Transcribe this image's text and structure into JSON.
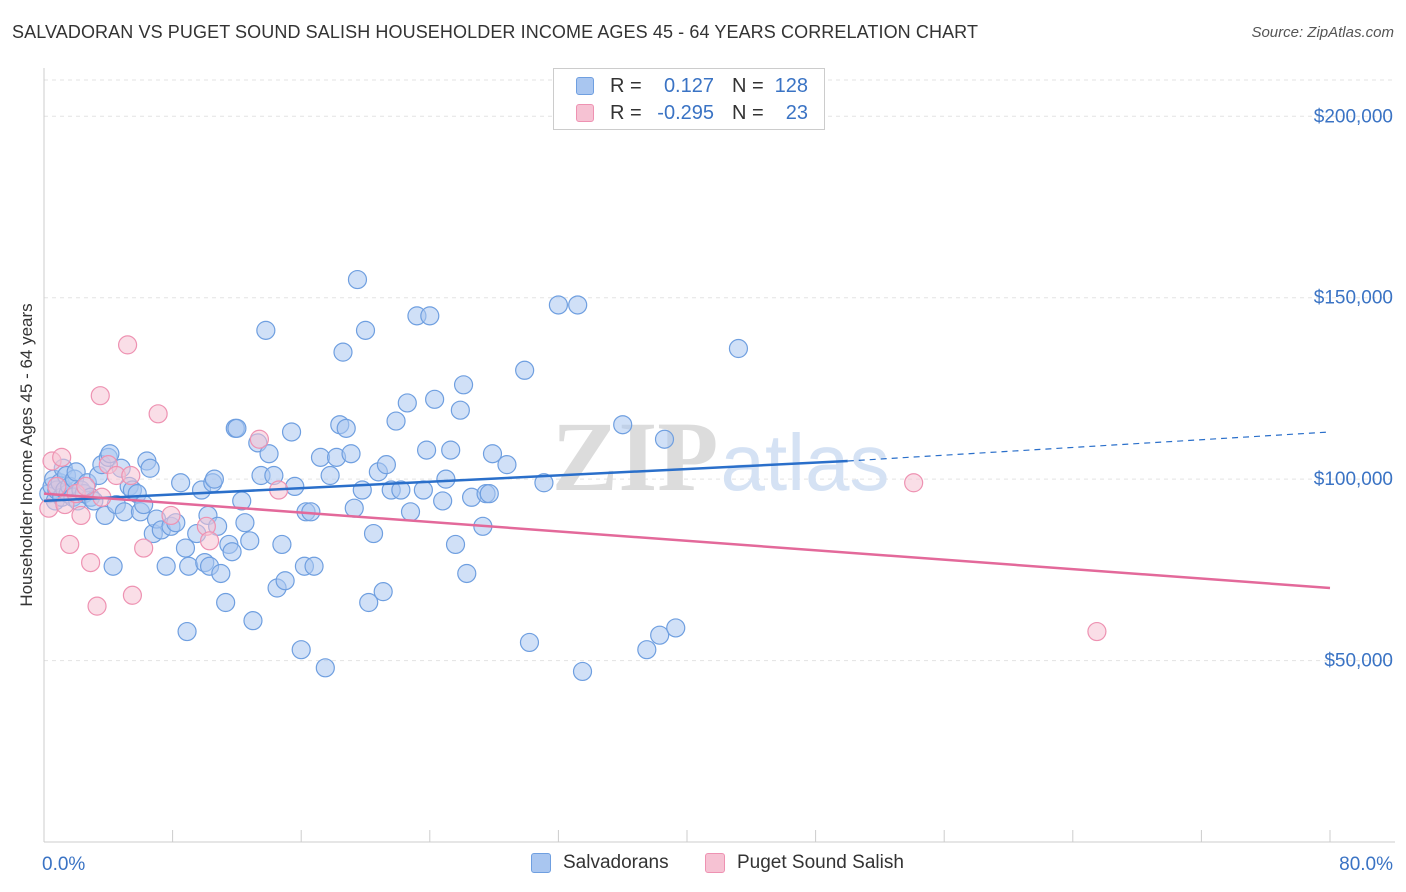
{
  "header": {
    "title": "SALVADORAN VS PUGET SOUND SALISH HOUSEHOLDER INCOME AGES 45 - 64 YEARS CORRELATION CHART",
    "source": "Source: ZipAtlas.com"
  },
  "watermark": {
    "zip": "ZIP",
    "atlas": "atlas"
  },
  "legend": {
    "rows": [
      {
        "r_label": "R =",
        "r_value": "0.127",
        "n_label": "N =",
        "n_value": "128",
        "color": "#6f9fe0"
      },
      {
        "r_label": "R =",
        "r_value": "-0.295",
        "n_label": "N =",
        "n_value": "23",
        "color": "#ee92b2"
      }
    ]
  },
  "bottom_legend": [
    "Salvadorans",
    "Puget Sound Salish"
  ],
  "colors": {
    "blue_fill": "#a9c6f0",
    "blue_stroke": "#6f9fe0",
    "blue_line": "#2a6fca",
    "pink_fill": "#f6c2d3",
    "pink_stroke": "#ee92b2",
    "pink_line": "#e3699a",
    "tick_label": "#3a73c4"
  },
  "chart_data": {
    "type": "scatter",
    "title": "SALVADORAN VS PUGET SOUND SALISH HOUSEHOLDER INCOME AGES 45 - 64 YEARS CORRELATION CHART",
    "xlabel": "",
    "ylabel": "Householder Income Ages 45 - 64 years",
    "xlim": [
      0,
      80
    ],
    "ylim": [
      0,
      210000
    ],
    "x_tick_labels": [
      "0.0%",
      "80.0%"
    ],
    "y_ticks": [
      50000,
      100000,
      150000,
      200000
    ],
    "y_tick_labels": [
      "$50,000",
      "$100,000",
      "$150,000",
      "$200,000"
    ],
    "grid": true,
    "legend_placement": "top-center",
    "series": [
      {
        "name": "Salvadorans",
        "trend": {
          "x": [
            0,
            50
          ],
          "y": [
            94000,
            105000
          ],
          "dashed_to": [
            80,
            113000
          ]
        },
        "points": [
          [
            0.3,
            96000
          ],
          [
            0.5,
            98000
          ],
          [
            0.6,
            100000
          ],
          [
            0.7,
            94000
          ],
          [
            0.8,
            97000
          ],
          [
            1.0,
            99000
          ],
          [
            1.1,
            95000
          ],
          [
            1.2,
            103000
          ],
          [
            1.3,
            97000
          ],
          [
            1.4,
            101000
          ],
          [
            1.5,
            96000
          ],
          [
            1.6,
            98000
          ],
          [
            1.8,
            95000
          ],
          [
            1.9,
            100000
          ],
          [
            2.0,
            102000
          ],
          [
            2.1,
            94000
          ],
          [
            2.3,
            97000
          ],
          [
            2.5,
            96000
          ],
          [
            2.7,
            99000
          ],
          [
            2.9,
            95000
          ],
          [
            3.1,
            94000
          ],
          [
            3.4,
            101000
          ],
          [
            3.6,
            104000
          ],
          [
            3.8,
            90000
          ],
          [
            4.0,
            106000
          ],
          [
            4.1,
            107000
          ],
          [
            4.3,
            76000
          ],
          [
            4.5,
            93000
          ],
          [
            4.8,
            103000
          ],
          [
            5.0,
            91000
          ],
          [
            5.3,
            98000
          ],
          [
            5.5,
            97000
          ],
          [
            5.8,
            96000
          ],
          [
            6.0,
            91000
          ],
          [
            6.2,
            93000
          ],
          [
            6.4,
            105000
          ],
          [
            6.6,
            103000
          ],
          [
            6.8,
            85000
          ],
          [
            7.0,
            89000
          ],
          [
            7.3,
            86000
          ],
          [
            7.6,
            76000
          ],
          [
            7.9,
            87000
          ],
          [
            8.2,
            88000
          ],
          [
            8.5,
            99000
          ],
          [
            8.8,
            81000
          ],
          [
            8.9,
            58000
          ],
          [
            9.0,
            76000
          ],
          [
            9.5,
            85000
          ],
          [
            9.8,
            97000
          ],
          [
            10.0,
            77000
          ],
          [
            10.3,
            76000
          ],
          [
            10.2,
            90000
          ],
          [
            10.5,
            99000
          ],
          [
            10.6,
            100000
          ],
          [
            10.8,
            87000
          ],
          [
            11.0,
            74000
          ],
          [
            11.3,
            66000
          ],
          [
            11.5,
            82000
          ],
          [
            11.7,
            80000
          ],
          [
            11.9,
            114000
          ],
          [
            12.0,
            114000
          ],
          [
            12.3,
            94000
          ],
          [
            12.5,
            88000
          ],
          [
            12.8,
            83000
          ],
          [
            13.0,
            61000
          ],
          [
            13.3,
            110000
          ],
          [
            13.5,
            101000
          ],
          [
            13.8,
            141000
          ],
          [
            14.0,
            107000
          ],
          [
            14.3,
            101000
          ],
          [
            14.5,
            70000
          ],
          [
            14.8,
            82000
          ],
          [
            15.0,
            72000
          ],
          [
            15.4,
            113000
          ],
          [
            15.6,
            98000
          ],
          [
            16.0,
            53000
          ],
          [
            16.2,
            76000
          ],
          [
            16.3,
            91000
          ],
          [
            16.6,
            91000
          ],
          [
            16.8,
            76000
          ],
          [
            17.2,
            106000
          ],
          [
            17.5,
            48000
          ],
          [
            17.8,
            101000
          ],
          [
            18.2,
            106000
          ],
          [
            18.4,
            115000
          ],
          [
            18.6,
            135000
          ],
          [
            18.8,
            114000
          ],
          [
            19.1,
            107000
          ],
          [
            19.3,
            92000
          ],
          [
            19.5,
            155000
          ],
          [
            19.8,
            97000
          ],
          [
            20.0,
            141000
          ],
          [
            20.2,
            66000
          ],
          [
            20.5,
            85000
          ],
          [
            20.8,
            102000
          ],
          [
            21.1,
            69000
          ],
          [
            21.3,
            104000
          ],
          [
            21.6,
            97000
          ],
          [
            21.9,
            116000
          ],
          [
            22.2,
            97000
          ],
          [
            22.6,
            121000
          ],
          [
            22.8,
            91000
          ],
          [
            23.2,
            145000
          ],
          [
            23.6,
            97000
          ],
          [
            23.8,
            108000
          ],
          [
            24.0,
            145000
          ],
          [
            24.3,
            122000
          ],
          [
            24.8,
            94000
          ],
          [
            25.0,
            100000
          ],
          [
            25.3,
            108000
          ],
          [
            25.6,
            82000
          ],
          [
            25.9,
            119000
          ],
          [
            26.1,
            126000
          ],
          [
            26.3,
            74000
          ],
          [
            26.6,
            95000
          ],
          [
            27.3,
            87000
          ],
          [
            27.5,
            96000
          ],
          [
            27.7,
            96000
          ],
          [
            27.9,
            107000
          ],
          [
            28.8,
            104000
          ],
          [
            29.9,
            130000
          ],
          [
            30.2,
            55000
          ],
          [
            31.1,
            99000
          ],
          [
            32.0,
            148000
          ],
          [
            33.2,
            148000
          ],
          [
            33.5,
            47000
          ],
          [
            36.0,
            115000
          ],
          [
            37.5,
            53000
          ],
          [
            38.3,
            57000
          ],
          [
            38.6,
            111000
          ],
          [
            39.3,
            59000
          ],
          [
            43.2,
            136000
          ]
        ]
      },
      {
        "name": "Puget Sound Salish",
        "trend": {
          "x": [
            0,
            80
          ],
          "y": [
            96000,
            70000
          ]
        },
        "points": [
          [
            0.3,
            92000
          ],
          [
            0.5,
            105000
          ],
          [
            0.8,
            98000
          ],
          [
            1.1,
            106000
          ],
          [
            1.3,
            93000
          ],
          [
            1.6,
            82000
          ],
          [
            2.0,
            96000
          ],
          [
            2.3,
            90000
          ],
          [
            2.6,
            98000
          ],
          [
            2.9,
            77000
          ],
          [
            3.3,
            65000
          ],
          [
            3.6,
            95000
          ],
          [
            4.0,
            104000
          ],
          [
            4.5,
            101000
          ],
          [
            5.2,
            137000
          ],
          [
            5.4,
            101000
          ],
          [
            5.5,
            68000
          ],
          [
            6.2,
            81000
          ],
          [
            7.1,
            118000
          ],
          [
            7.9,
            90000
          ],
          [
            10.1,
            87000
          ],
          [
            10.3,
            83000
          ],
          [
            13.4,
            111000
          ],
          [
            14.6,
            97000
          ],
          [
            3.5,
            123000
          ],
          [
            54.1,
            99000
          ],
          [
            65.5,
            58000
          ]
        ]
      }
    ]
  }
}
